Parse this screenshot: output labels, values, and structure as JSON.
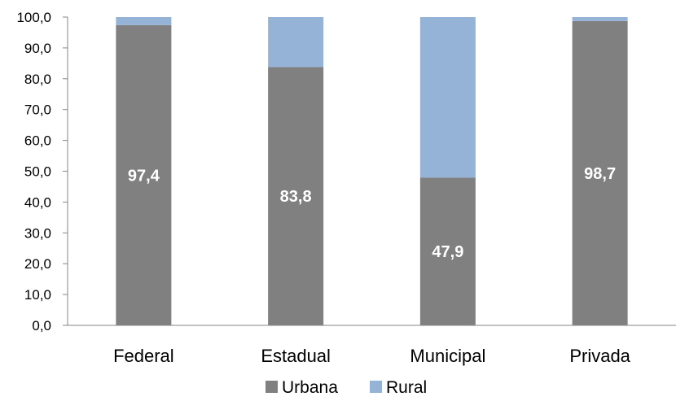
{
  "chart_data": {
    "type": "bar",
    "stacked": true,
    "categories": [
      "Federal",
      "Estadual",
      "Municipal",
      "Privada"
    ],
    "series": [
      {
        "name": "Urbana",
        "values": [
          97.4,
          83.8,
          47.9,
          98.7
        ],
        "color": "#808080"
      },
      {
        "name": "Rural",
        "values": [
          2.6,
          16.2,
          52.1,
          1.3
        ],
        "color": "#95B3D7"
      }
    ],
    "data_labels": [
      "97,4",
      "83,8",
      "47,9",
      "98,7"
    ],
    "ylim": [
      0,
      100
    ],
    "yticks": [
      "0,0",
      "10,0",
      "20,0",
      "30,0",
      "40,0",
      "50,0",
      "60,0",
      "70,0",
      "80,0",
      "90,0",
      "100,0"
    ],
    "grid": false,
    "legend": "bottom-center"
  }
}
